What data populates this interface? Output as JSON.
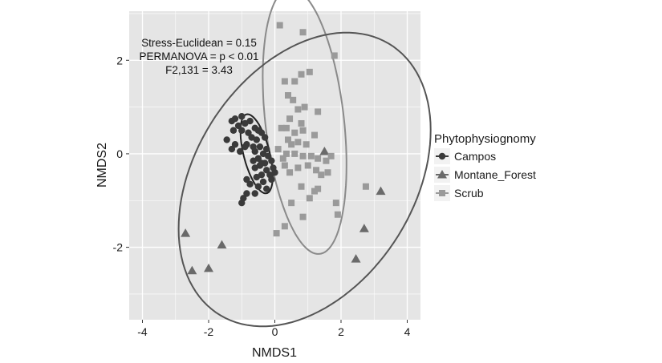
{
  "chart_data": {
    "type": "scatter",
    "xlabel": "NMDS1",
    "ylabel": "NMDS2",
    "xlim": [
      -4.4,
      4.4
    ],
    "ylim": [
      -3.55,
      3.05
    ],
    "x_ticks": [
      -4,
      -2,
      0,
      2,
      4
    ],
    "y_ticks": [
      2,
      0,
      -2
    ],
    "grid": true,
    "legend_position": "right",
    "legend_title": "Phytophysiognomy",
    "annotations": [
      "Stress-Euclidean = 0.15",
      "PERMANOVA = p < 0.01",
      "F2,131 = 3.43"
    ],
    "series": [
      {
        "name": "Campos",
        "marker": "circle",
        "color": "#3a3a3a",
        "points": [
          [
            -1.0,
            0.8
          ],
          [
            -1.3,
            0.7
          ],
          [
            -1.2,
            0.75
          ],
          [
            -1.1,
            0.6
          ],
          [
            -0.9,
            0.65
          ],
          [
            -1.25,
            0.5
          ],
          [
            -1.0,
            0.5
          ],
          [
            -0.75,
            0.7
          ],
          [
            -0.6,
            0.55
          ],
          [
            -0.8,
            0.45
          ],
          [
            -0.5,
            0.5
          ],
          [
            -0.4,
            0.45
          ],
          [
            -0.7,
            0.35
          ],
          [
            -0.55,
            0.3
          ],
          [
            -0.3,
            0.35
          ],
          [
            -1.45,
            0.3
          ],
          [
            -1.2,
            0.2
          ],
          [
            -0.85,
            0.2
          ],
          [
            -0.65,
            0.15
          ],
          [
            -0.45,
            0.15
          ],
          [
            -0.25,
            0.1
          ],
          [
            -1.3,
            0.1
          ],
          [
            -1.05,
            0.05
          ],
          [
            -0.9,
            0.15
          ],
          [
            -0.6,
            0.05
          ],
          [
            -0.35,
            0.0
          ],
          [
            -0.5,
            -0.1
          ],
          [
            -0.2,
            -0.05
          ],
          [
            -0.3,
            -0.2
          ],
          [
            -0.1,
            -0.15
          ],
          [
            -0.45,
            -0.25
          ],
          [
            -0.6,
            -0.3
          ],
          [
            -0.25,
            -0.35
          ],
          [
            -0.05,
            -0.3
          ],
          [
            -0.4,
            -0.45
          ],
          [
            -0.15,
            -0.45
          ],
          [
            0.0,
            -0.4
          ],
          [
            -0.35,
            -0.6
          ],
          [
            -0.1,
            -0.55
          ],
          [
            -0.55,
            -0.5
          ],
          [
            -0.85,
            -0.55
          ],
          [
            -0.5,
            -0.7
          ],
          [
            -0.25,
            -0.75
          ],
          [
            -0.6,
            -0.85
          ],
          [
            -0.85,
            -0.85
          ],
          [
            -0.75,
            -0.65
          ],
          [
            -0.95,
            -0.95
          ],
          [
            -1.0,
            -1.05
          ],
          [
            -0.4,
            -0.2
          ],
          [
            -0.65,
            -0.15
          ]
        ]
      },
      {
        "name": "Montane_Forest",
        "marker": "triangle",
        "color": "#6a6a6a",
        "points": [
          [
            -2.7,
            -1.7
          ],
          [
            -2.5,
            -2.5
          ],
          [
            -2.0,
            -2.45
          ],
          [
            -1.6,
            -1.95
          ],
          [
            1.5,
            0.05
          ],
          [
            2.45,
            -2.25
          ],
          [
            2.7,
            -1.6
          ],
          [
            3.2,
            -0.8
          ]
        ]
      },
      {
        "name": "Scrub",
        "marker": "square",
        "color": "#9a9a9a",
        "points": [
          [
            0.15,
            2.75
          ],
          [
            0.85,
            2.6
          ],
          [
            1.8,
            2.1
          ],
          [
            0.3,
            1.55
          ],
          [
            0.6,
            1.55
          ],
          [
            0.8,
            1.7
          ],
          [
            1.05,
            1.75
          ],
          [
            0.4,
            1.25
          ],
          [
            0.55,
            1.15
          ],
          [
            0.7,
            0.95
          ],
          [
            0.9,
            1.0
          ],
          [
            1.3,
            0.9
          ],
          [
            0.45,
            0.75
          ],
          [
            0.8,
            0.65
          ],
          [
            0.2,
            0.55
          ],
          [
            0.35,
            0.55
          ],
          [
            0.6,
            0.45
          ],
          [
            0.85,
            0.5
          ],
          [
            1.2,
            0.4
          ],
          [
            0.4,
            0.3
          ],
          [
            0.5,
            0.2
          ],
          [
            0.7,
            0.25
          ],
          [
            0.95,
            0.2
          ],
          [
            0.1,
            0.1
          ],
          [
            0.35,
            0.0
          ],
          [
            0.6,
            0.0
          ],
          [
            0.85,
            -0.05
          ],
          [
            1.1,
            -0.05
          ],
          [
            1.3,
            -0.1
          ],
          [
            1.55,
            -0.15
          ],
          [
            1.7,
            -0.05
          ],
          [
            0.3,
            -0.25
          ],
          [
            0.45,
            -0.4
          ],
          [
            0.7,
            -0.3
          ],
          [
            1.0,
            -0.25
          ],
          [
            1.25,
            -0.35
          ],
          [
            1.4,
            -0.45
          ],
          [
            1.6,
            -0.4
          ],
          [
            0.8,
            -0.7
          ],
          [
            1.2,
            -0.8
          ],
          [
            1.3,
            -0.75
          ],
          [
            0.5,
            -1.05
          ],
          [
            1.05,
            -0.95
          ],
          [
            1.85,
            -1.05
          ],
          [
            1.9,
            -1.3
          ],
          [
            0.85,
            -1.35
          ],
          [
            0.3,
            -1.55
          ],
          [
            0.05,
            -1.7
          ],
          [
            2.75,
            -0.7
          ],
          [
            0.25,
            -0.1
          ]
        ]
      }
    ],
    "ellipses": [
      {
        "name": "Scrub",
        "color": "#8a8a8a",
        "cx": 0.9,
        "cy": 0.7,
        "rx": 1.18,
        "ry": 2.88,
        "angle": 10
      },
      {
        "name": "Campos",
        "color": "#222222",
        "cx": -0.55,
        "cy": 0.0,
        "rx": 0.38,
        "ry": 0.9,
        "angle": 22
      },
      {
        "name": "Montane_Forest",
        "color": "#555555",
        "cx": 0.9,
        "cy": -0.55,
        "rx": 4.1,
        "ry": 2.75,
        "angle": 30
      }
    ]
  }
}
